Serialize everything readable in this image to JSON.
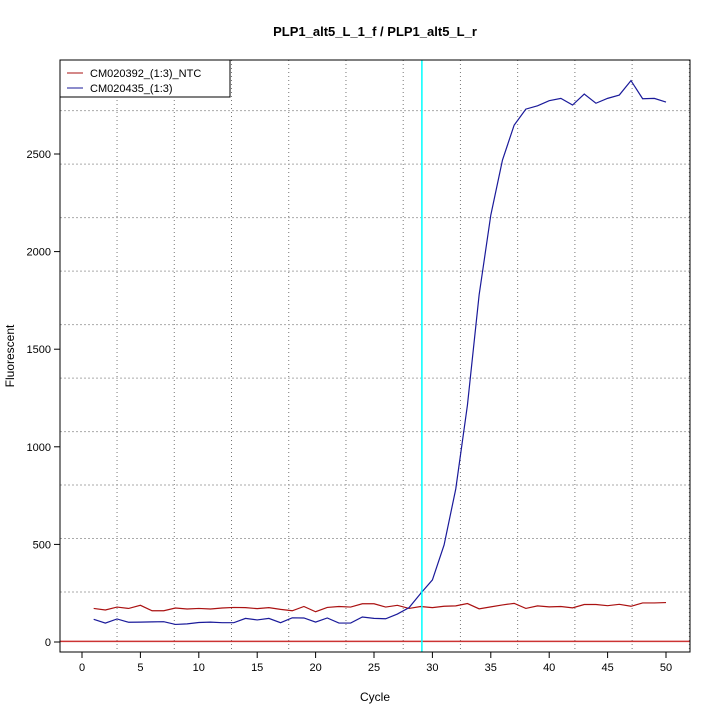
{
  "chart_data": {
    "type": "line",
    "title": "PLP1_alt5_L_1_f / PLP1_alt5_L_r",
    "xlabel": "Cycle",
    "ylabel": "Fluorescent",
    "xlim": [
      -1.5,
      52.5
    ],
    "ylim": [
      -50,
      3000
    ],
    "xticks": [
      0,
      5,
      10,
      15,
      20,
      25,
      30,
      35,
      40,
      45,
      50
    ],
    "yticks": [
      0,
      500,
      1000,
      1500,
      2000,
      2500
    ],
    "grid": true,
    "legend_position": "top-left",
    "threshold_cycle": 29.1,
    "threshold_color": "#00ffff",
    "baseline_value": 3,
    "baseline_color": "#cc3333",
    "x": [
      1,
      2,
      3,
      4,
      5,
      6,
      7,
      8,
      9,
      10,
      11,
      12,
      13,
      14,
      15,
      16,
      17,
      18,
      19,
      20,
      21,
      22,
      23,
      24,
      25,
      26,
      27,
      28,
      29,
      30,
      31,
      32,
      33,
      34,
      35,
      36,
      37,
      38,
      39,
      40,
      41,
      42,
      43,
      44,
      45,
      46,
      47,
      48,
      49,
      50
    ],
    "series": [
      {
        "name": "CM020392_(1:3)_NTC",
        "color": "#aa1111",
        "values": [
          172,
          164,
          179,
          172,
          188,
          160,
          160,
          174,
          169,
          172,
          169,
          174,
          177,
          176,
          171,
          176,
          167,
          160,
          182,
          155,
          177,
          182,
          179,
          196,
          196,
          179,
          188,
          172,
          182,
          176,
          183,
          185,
          197,
          170,
          180,
          190,
          198,
          172,
          185,
          180,
          182,
          175,
          192,
          192,
          186,
          193,
          183,
          200,
          200,
          202
        ]
      },
      {
        "name": "CM020435_(1:3)",
        "color": "#1a1a9a",
        "values": [
          116,
          97,
          118,
          101,
          102,
          103,
          104,
          90,
          93,
          100,
          102,
          99,
          99,
          121,
          113,
          121,
          99,
          124,
          123,
          102,
          123,
          97,
          97,
          128,
          121,
          119,
          143,
          176,
          249,
          318,
          497,
          784,
          1214,
          1778,
          2187,
          2469,
          2648,
          2730,
          2747,
          2773,
          2785,
          2751,
          2807,
          2760,
          2785,
          2802,
          2876,
          2783,
          2785,
          2766
        ]
      }
    ]
  }
}
